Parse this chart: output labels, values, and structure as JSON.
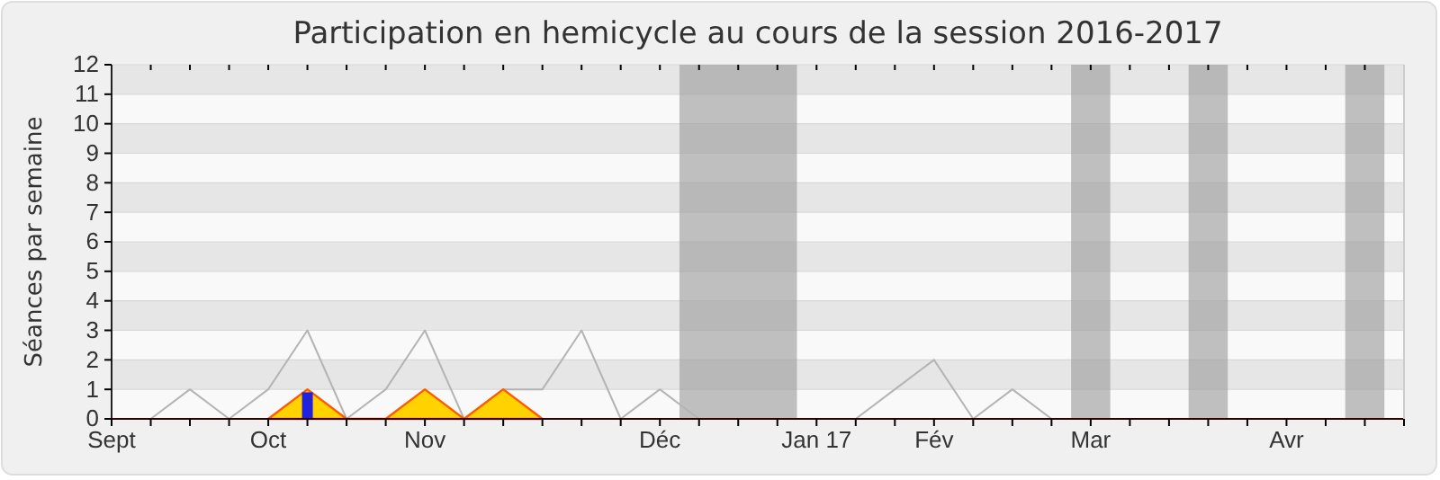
{
  "chart_data": {
    "type": "line",
    "title": "Participation en hemicycle au cours de la session 2016-2017",
    "ylabel": "Séances par semaine",
    "ylim": [
      0,
      12
    ],
    "yticks": [
      0,
      1,
      2,
      3,
      4,
      5,
      6,
      7,
      8,
      9,
      10,
      11,
      12
    ],
    "categories": [
      "Sept",
      null,
      null,
      null,
      "Oct",
      null,
      null,
      null,
      "Nov",
      null,
      null,
      null,
      null,
      null,
      "Déc",
      null,
      null,
      null,
      "Jan 17",
      null,
      null,
      "Fév",
      null,
      null,
      null,
      "Mar",
      null,
      null,
      null,
      null,
      "Avr",
      null,
      null,
      null
    ],
    "grid": "y",
    "series": [
      {
        "color": "#b4b4b4",
        "values": [
          null,
          0,
          1,
          0,
          1,
          3,
          0,
          1,
          3,
          0,
          1,
          1,
          3,
          0,
          1,
          0,
          0,
          0,
          0,
          0,
          1,
          2,
          0,
          1,
          0,
          null,
          null,
          null,
          null,
          null,
          null,
          null,
          null,
          null
        ]
      },
      {
        "type": "area",
        "color": "#ffd200",
        "values": [
          null,
          null,
          null,
          null,
          0,
          1,
          0,
          0,
          1,
          0,
          1,
          0,
          null,
          null,
          null,
          null,
          null,
          null,
          null,
          null,
          null,
          null,
          null,
          null,
          null,
          null,
          null,
          null,
          null,
          null,
          null,
          null,
          null,
          null
        ]
      },
      {
        "type": "bar",
        "color": "#2222dd",
        "values": [
          null,
          null,
          null,
          null,
          null,
          0.9,
          null,
          null,
          null,
          null,
          null,
          null,
          null,
          null,
          null,
          null,
          null,
          null,
          null,
          null,
          null,
          null,
          null,
          null,
          null,
          null,
          null,
          null,
          null,
          null,
          null,
          null,
          null,
          null
        ]
      }
    ]
  }
}
